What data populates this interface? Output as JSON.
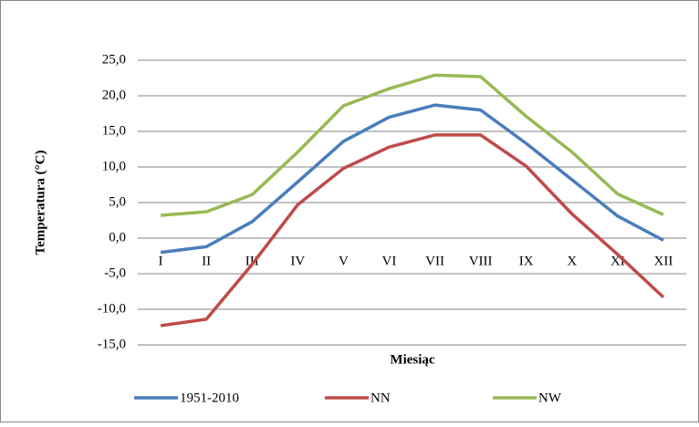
{
  "chart_data": {
    "type": "line",
    "x_label": "Miesiąc",
    "y_label": "Temperatura (°C)",
    "categories": [
      "I",
      "II",
      "III",
      "IV",
      "V",
      "VI",
      "VII",
      "VIII",
      "IX",
      "X",
      "XI",
      "XII"
    ],
    "series": [
      {
        "name": "1951-2010",
        "color": "#4a7ebb",
        "values": [
          -2.0,
          -1.2,
          2.3,
          7.9,
          13.6,
          17.0,
          18.7,
          18.0,
          13.3,
          8.2,
          3.1,
          -0.3
        ]
      },
      {
        "name": "NN",
        "color": "#be4b48",
        "values": [
          -12.3,
          -11.4,
          -3.7,
          4.7,
          9.8,
          12.8,
          14.5,
          14.5,
          10.1,
          3.4,
          -2.3,
          -8.3
        ]
      },
      {
        "name": "NW",
        "color": "#98b954",
        "values": [
          3.2,
          3.7,
          6.1,
          12.1,
          18.6,
          21.0,
          22.9,
          22.7,
          17.1,
          12.1,
          6.2,
          3.3
        ]
      }
    ],
    "ylim": [
      -15,
      25
    ],
    "yticks": [
      {
        "value": -15,
        "label": "-15,0"
      },
      {
        "value": -10,
        "label": "-10,0"
      },
      {
        "value": -5,
        "label": "-5,0"
      },
      {
        "value": 0,
        "label": "0,0"
      },
      {
        "value": 5,
        "label": "5,0"
      },
      {
        "value": 10,
        "label": "10,0"
      },
      {
        "value": 15,
        "label": "15,0"
      },
      {
        "value": 20,
        "label": "20,0"
      },
      {
        "value": 25,
        "label": "25,0"
      }
    ],
    "grid": true,
    "legend": "bottom"
  }
}
